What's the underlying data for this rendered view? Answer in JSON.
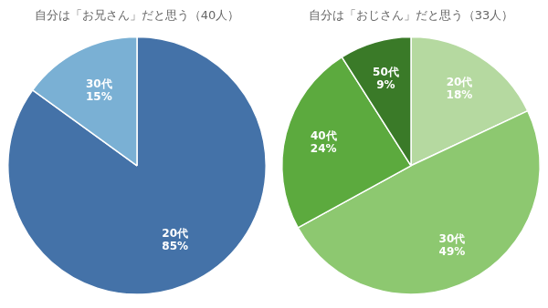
{
  "chart_data": [
    {
      "type": "pie",
      "title": "自分は「お兄さん」だと思う（40人）",
      "categories": [
        "20代",
        "30代"
      ],
      "values": [
        85,
        15
      ],
      "value_labels": [
        "85%",
        "15%"
      ],
      "colors": [
        "#4472a8",
        "#7ab0d4"
      ],
      "data_labels": true
    },
    {
      "type": "pie",
      "title": "自分は「おじさん」だと思う（33人）",
      "categories": [
        "20代",
        "30代",
        "40代",
        "50代"
      ],
      "values": [
        18,
        49,
        24,
        9
      ],
      "value_labels": [
        "18%",
        "49%",
        "24%",
        "9%"
      ],
      "colors": [
        "#b5d9a0",
        "#8dc870",
        "#5caa3e",
        "#3a7a28"
      ],
      "data_labels": true
    }
  ]
}
